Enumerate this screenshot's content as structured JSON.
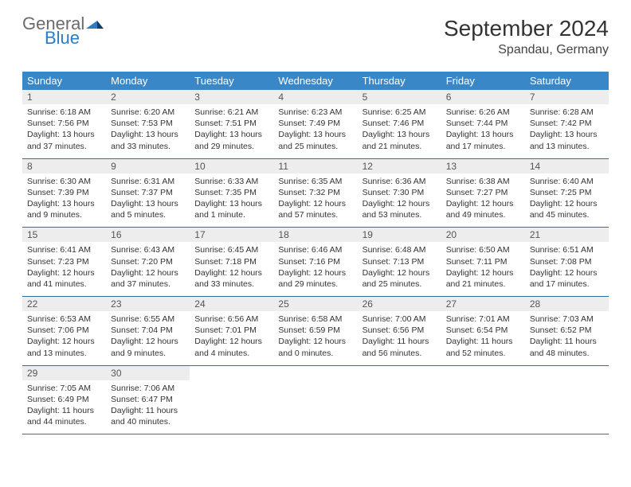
{
  "brand": {
    "word1": "General",
    "word2": "Blue"
  },
  "title": "September 2024",
  "location": "Spandau, Germany",
  "colors": {
    "header_bg": "#3a87c8",
    "header_text": "#ffffff",
    "daynum_bg": "#ededed",
    "daynum_text": "#555555",
    "row_divider": "#2e6ea4",
    "body_text": "#333333",
    "logo_gray": "#6b6b6b",
    "logo_blue": "#2e7cc0"
  },
  "weekdays": [
    "Sunday",
    "Monday",
    "Tuesday",
    "Wednesday",
    "Thursday",
    "Friday",
    "Saturday"
  ],
  "weeks": [
    [
      {
        "n": "1",
        "sr": "Sunrise: 6:18 AM",
        "ss": "Sunset: 7:56 PM",
        "d1": "Daylight: 13 hours",
        "d2": "and 37 minutes."
      },
      {
        "n": "2",
        "sr": "Sunrise: 6:20 AM",
        "ss": "Sunset: 7:53 PM",
        "d1": "Daylight: 13 hours",
        "d2": "and 33 minutes."
      },
      {
        "n": "3",
        "sr": "Sunrise: 6:21 AM",
        "ss": "Sunset: 7:51 PM",
        "d1": "Daylight: 13 hours",
        "d2": "and 29 minutes."
      },
      {
        "n": "4",
        "sr": "Sunrise: 6:23 AM",
        "ss": "Sunset: 7:49 PM",
        "d1": "Daylight: 13 hours",
        "d2": "and 25 minutes."
      },
      {
        "n": "5",
        "sr": "Sunrise: 6:25 AM",
        "ss": "Sunset: 7:46 PM",
        "d1": "Daylight: 13 hours",
        "d2": "and 21 minutes."
      },
      {
        "n": "6",
        "sr": "Sunrise: 6:26 AM",
        "ss": "Sunset: 7:44 PM",
        "d1": "Daylight: 13 hours",
        "d2": "and 17 minutes."
      },
      {
        "n": "7",
        "sr": "Sunrise: 6:28 AM",
        "ss": "Sunset: 7:42 PM",
        "d1": "Daylight: 13 hours",
        "d2": "and 13 minutes."
      }
    ],
    [
      {
        "n": "8",
        "sr": "Sunrise: 6:30 AM",
        "ss": "Sunset: 7:39 PM",
        "d1": "Daylight: 13 hours",
        "d2": "and 9 minutes."
      },
      {
        "n": "9",
        "sr": "Sunrise: 6:31 AM",
        "ss": "Sunset: 7:37 PM",
        "d1": "Daylight: 13 hours",
        "d2": "and 5 minutes."
      },
      {
        "n": "10",
        "sr": "Sunrise: 6:33 AM",
        "ss": "Sunset: 7:35 PM",
        "d1": "Daylight: 13 hours",
        "d2": "and 1 minute."
      },
      {
        "n": "11",
        "sr": "Sunrise: 6:35 AM",
        "ss": "Sunset: 7:32 PM",
        "d1": "Daylight: 12 hours",
        "d2": "and 57 minutes."
      },
      {
        "n": "12",
        "sr": "Sunrise: 6:36 AM",
        "ss": "Sunset: 7:30 PM",
        "d1": "Daylight: 12 hours",
        "d2": "and 53 minutes."
      },
      {
        "n": "13",
        "sr": "Sunrise: 6:38 AM",
        "ss": "Sunset: 7:27 PM",
        "d1": "Daylight: 12 hours",
        "d2": "and 49 minutes."
      },
      {
        "n": "14",
        "sr": "Sunrise: 6:40 AM",
        "ss": "Sunset: 7:25 PM",
        "d1": "Daylight: 12 hours",
        "d2": "and 45 minutes."
      }
    ],
    [
      {
        "n": "15",
        "sr": "Sunrise: 6:41 AM",
        "ss": "Sunset: 7:23 PM",
        "d1": "Daylight: 12 hours",
        "d2": "and 41 minutes."
      },
      {
        "n": "16",
        "sr": "Sunrise: 6:43 AM",
        "ss": "Sunset: 7:20 PM",
        "d1": "Daylight: 12 hours",
        "d2": "and 37 minutes."
      },
      {
        "n": "17",
        "sr": "Sunrise: 6:45 AM",
        "ss": "Sunset: 7:18 PM",
        "d1": "Daylight: 12 hours",
        "d2": "and 33 minutes."
      },
      {
        "n": "18",
        "sr": "Sunrise: 6:46 AM",
        "ss": "Sunset: 7:16 PM",
        "d1": "Daylight: 12 hours",
        "d2": "and 29 minutes."
      },
      {
        "n": "19",
        "sr": "Sunrise: 6:48 AM",
        "ss": "Sunset: 7:13 PM",
        "d1": "Daylight: 12 hours",
        "d2": "and 25 minutes."
      },
      {
        "n": "20",
        "sr": "Sunrise: 6:50 AM",
        "ss": "Sunset: 7:11 PM",
        "d1": "Daylight: 12 hours",
        "d2": "and 21 minutes."
      },
      {
        "n": "21",
        "sr": "Sunrise: 6:51 AM",
        "ss": "Sunset: 7:08 PM",
        "d1": "Daylight: 12 hours",
        "d2": "and 17 minutes."
      }
    ],
    [
      {
        "n": "22",
        "sr": "Sunrise: 6:53 AM",
        "ss": "Sunset: 7:06 PM",
        "d1": "Daylight: 12 hours",
        "d2": "and 13 minutes."
      },
      {
        "n": "23",
        "sr": "Sunrise: 6:55 AM",
        "ss": "Sunset: 7:04 PM",
        "d1": "Daylight: 12 hours",
        "d2": "and 9 minutes."
      },
      {
        "n": "24",
        "sr": "Sunrise: 6:56 AM",
        "ss": "Sunset: 7:01 PM",
        "d1": "Daylight: 12 hours",
        "d2": "and 4 minutes."
      },
      {
        "n": "25",
        "sr": "Sunrise: 6:58 AM",
        "ss": "Sunset: 6:59 PM",
        "d1": "Daylight: 12 hours",
        "d2": "and 0 minutes."
      },
      {
        "n": "26",
        "sr": "Sunrise: 7:00 AM",
        "ss": "Sunset: 6:56 PM",
        "d1": "Daylight: 11 hours",
        "d2": "and 56 minutes."
      },
      {
        "n": "27",
        "sr": "Sunrise: 7:01 AM",
        "ss": "Sunset: 6:54 PM",
        "d1": "Daylight: 11 hours",
        "d2": "and 52 minutes."
      },
      {
        "n": "28",
        "sr": "Sunrise: 7:03 AM",
        "ss": "Sunset: 6:52 PM",
        "d1": "Daylight: 11 hours",
        "d2": "and 48 minutes."
      }
    ],
    [
      {
        "n": "29",
        "sr": "Sunrise: 7:05 AM",
        "ss": "Sunset: 6:49 PM",
        "d1": "Daylight: 11 hours",
        "d2": "and 44 minutes."
      },
      {
        "n": "30",
        "sr": "Sunrise: 7:06 AM",
        "ss": "Sunset: 6:47 PM",
        "d1": "Daylight: 11 hours",
        "d2": "and 40 minutes."
      },
      {
        "n": "",
        "sr": "",
        "ss": "",
        "d1": "",
        "d2": ""
      },
      {
        "n": "",
        "sr": "",
        "ss": "",
        "d1": "",
        "d2": ""
      },
      {
        "n": "",
        "sr": "",
        "ss": "",
        "d1": "",
        "d2": ""
      },
      {
        "n": "",
        "sr": "",
        "ss": "",
        "d1": "",
        "d2": ""
      },
      {
        "n": "",
        "sr": "",
        "ss": "",
        "d1": "",
        "d2": ""
      }
    ]
  ]
}
